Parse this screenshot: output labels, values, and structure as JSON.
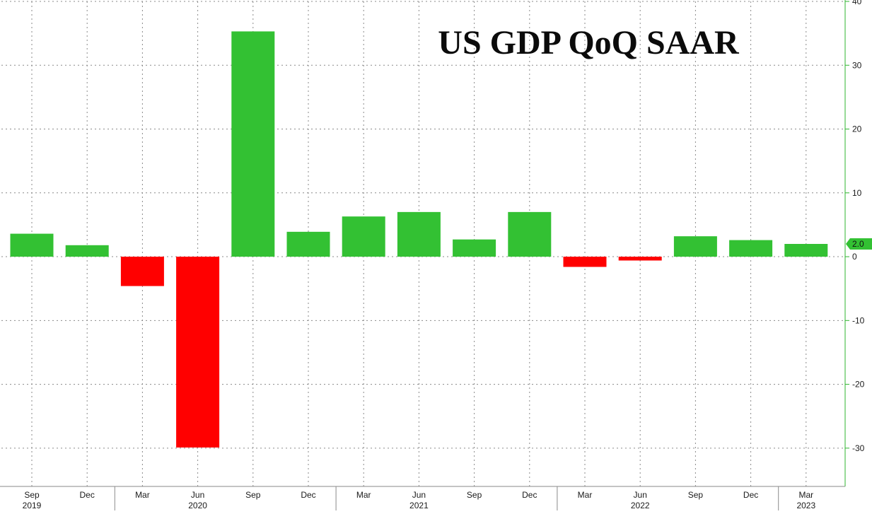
{
  "colors": {
    "positive": "#33c133",
    "negative": "#ff0000",
    "axis": "#2fb52f",
    "grid": "#8a8a8a",
    "text": "#1a1a1a",
    "last_value_tag": "#33c133"
  },
  "chart_data": {
    "type": "bar",
    "title": "US GDP QoQ SAAR",
    "xlabel": "",
    "ylabel": "",
    "y_axis_position": "right",
    "ylim": [
      -36,
      40
    ],
    "yticks": [
      -30,
      -20,
      -10,
      0,
      10,
      20,
      30,
      40
    ],
    "ytick_labels": [
      "-30",
      "-20",
      "-10",
      "0",
      "10",
      "20",
      "30",
      "40"
    ],
    "grid": true,
    "legend": "none",
    "categories": [
      "Sep",
      "Dec",
      "Mar",
      "Jun",
      "Sep",
      "Dec",
      "Mar",
      "Jun",
      "Sep",
      "Dec",
      "Mar",
      "Jun",
      "Sep",
      "Dec",
      "Mar"
    ],
    "values": [
      3.6,
      1.8,
      -4.6,
      -29.9,
      35.3,
      3.9,
      6.3,
      7.0,
      2.7,
      7.0,
      -1.6,
      -0.6,
      3.2,
      2.6,
      2.0
    ],
    "year_labels": [
      {
        "label": "2019",
        "category_index": 0
      },
      {
        "label": "2020",
        "category_index": 3
      },
      {
        "label": "2021",
        "category_index": 7
      },
      {
        "label": "2022",
        "category_index": 11
      },
      {
        "label": "2023",
        "category_index": 14
      }
    ],
    "last_value": {
      "value": 2.0,
      "label": "2.0"
    }
  }
}
